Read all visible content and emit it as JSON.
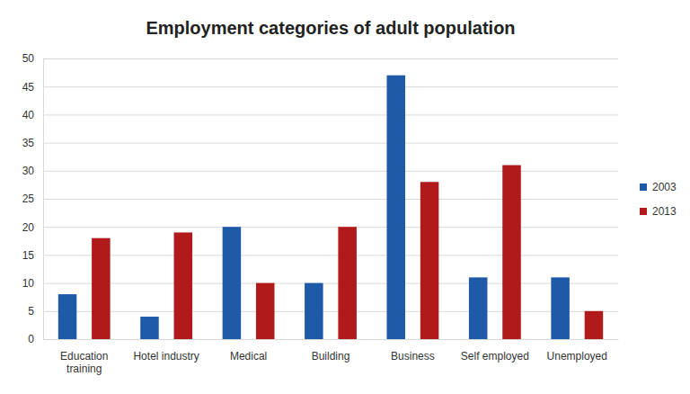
{
  "chart_data": {
    "type": "bar",
    "title": "Employment categories of adult population",
    "categories": [
      "Education training",
      "Hotel industry",
      "Medical",
      "Building",
      "Business",
      "Self employed",
      "Unemployed"
    ],
    "series": [
      {
        "name": "2003",
        "color": "#1f5aa8",
        "values": [
          8,
          4,
          20,
          10,
          47,
          11,
          11
        ]
      },
      {
        "name": "2013",
        "color": "#b01a1a",
        "values": [
          18,
          19,
          10,
          20,
          28,
          31,
          5
        ]
      }
    ],
    "ylim": [
      0,
      50
    ],
    "yticks": [
      0,
      5,
      10,
      15,
      20,
      25,
      30,
      35,
      40,
      45,
      50
    ],
    "grid": true,
    "legend": "right"
  }
}
